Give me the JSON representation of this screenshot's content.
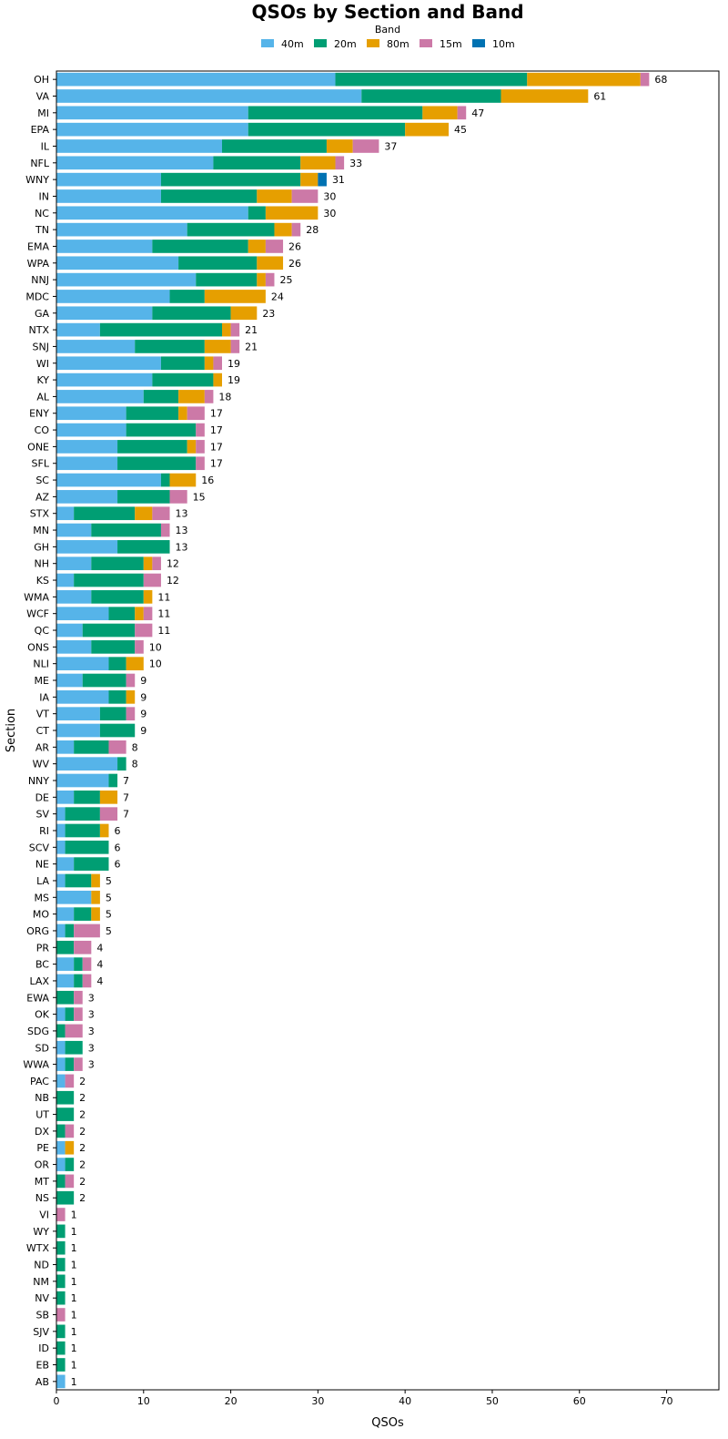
{
  "chart_data": {
    "type": "bar",
    "orientation": "horizontal",
    "stacked": true,
    "title": "QSOs by Section and Band",
    "xlabel": "QSOs",
    "ylabel": "Section",
    "xlim": [
      0,
      76
    ],
    "xticks": [
      0,
      10,
      20,
      30,
      40,
      50,
      60,
      70
    ],
    "grid": false,
    "legend": {
      "title": "Band",
      "position": "top-center"
    },
    "categories": [
      "OH",
      "VA",
      "MI",
      "EPA",
      "IL",
      "NFL",
      "WNY",
      "IN",
      "NC",
      "TN",
      "EMA",
      "WPA",
      "NNJ",
      "MDC",
      "GA",
      "NTX",
      "SNJ",
      "WI",
      "KY",
      "AL",
      "ENY",
      "CO",
      "ONE",
      "SFL",
      "SC",
      "AZ",
      "STX",
      "MN",
      "GH",
      "NH",
      "KS",
      "WMA",
      "WCF",
      "QC",
      "ONS",
      "NLI",
      "ME",
      "IA",
      "VT",
      "CT",
      "AR",
      "WV",
      "NNY",
      "DE",
      "SV",
      "RI",
      "SCV",
      "NE",
      "LA",
      "MS",
      "MO",
      "ORG",
      "PR",
      "BC",
      "LAX",
      "EWA",
      "OK",
      "SDG",
      "SD",
      "WWA",
      "PAC",
      "NB",
      "UT",
      "DX",
      "PE",
      "OR",
      "MT",
      "NS",
      "VI",
      "WY",
      "WTX",
      "ND",
      "NM",
      "NV",
      "SB",
      "SJV",
      "ID",
      "EB",
      "AB"
    ],
    "series": [
      {
        "name": "40m",
        "color": "#56b4e9",
        "values": [
          32,
          35,
          22,
          22,
          19,
          18,
          12,
          12,
          22,
          15,
          11,
          14,
          16,
          13,
          11,
          5,
          9,
          12,
          11,
          10,
          8,
          8,
          7,
          7,
          12,
          7,
          2,
          4,
          7,
          4,
          2,
          4,
          6,
          3,
          4,
          6,
          3,
          6,
          5,
          5,
          2,
          7,
          6,
          2,
          1,
          1,
          1,
          2,
          1,
          4,
          2,
          1,
          0,
          2,
          2,
          0,
          1,
          0,
          1,
          1,
          1,
          0,
          0,
          0,
          1,
          1,
          0,
          0,
          0,
          0,
          0,
          0,
          0,
          0,
          0,
          0,
          0,
          0,
          1
        ]
      },
      {
        "name": "20m",
        "color": "#009e73",
        "values": [
          22,
          16,
          20,
          18,
          12,
          10,
          16,
          11,
          2,
          10,
          11,
          9,
          7,
          4,
          9,
          14,
          8,
          5,
          7,
          4,
          6,
          8,
          8,
          9,
          1,
          6,
          7,
          8,
          6,
          6,
          8,
          6,
          3,
          6,
          5,
          2,
          5,
          2,
          3,
          4,
          4,
          1,
          1,
          3,
          4,
          4,
          5,
          4,
          3,
          0,
          2,
          1,
          2,
          1,
          1,
          2,
          1,
          1,
          2,
          1,
          0,
          2,
          2,
          1,
          0,
          1,
          1,
          2,
          0,
          1,
          1,
          1,
          1,
          1,
          0,
          1,
          1,
          1,
          0
        ]
      },
      {
        "name": "80m",
        "color": "#e69f00",
        "values": [
          13,
          10,
          4,
          5,
          3,
          4,
          2,
          4,
          6,
          2,
          2,
          3,
          1,
          7,
          3,
          1,
          3,
          1,
          1,
          3,
          1,
          0,
          1,
          0,
          3,
          0,
          2,
          0,
          0,
          1,
          0,
          1,
          1,
          0,
          0,
          2,
          0,
          1,
          0,
          0,
          0,
          0,
          0,
          2,
          0,
          1,
          0,
          0,
          1,
          1,
          1,
          0,
          0,
          0,
          0,
          0,
          0,
          0,
          0,
          0,
          0,
          0,
          0,
          0,
          1,
          0,
          0,
          0,
          0,
          0,
          0,
          0,
          0,
          0,
          0,
          0,
          0,
          0,
          0
        ]
      },
      {
        "name": "15m",
        "color": "#cc79a7",
        "values": [
          1,
          0,
          1,
          0,
          3,
          1,
          0,
          3,
          0,
          1,
          2,
          0,
          1,
          0,
          0,
          1,
          1,
          1,
          0,
          1,
          2,
          1,
          1,
          1,
          0,
          2,
          2,
          1,
          0,
          1,
          2,
          0,
          1,
          2,
          1,
          0,
          1,
          0,
          1,
          0,
          2,
          0,
          0,
          0,
          2,
          0,
          0,
          0,
          0,
          0,
          0,
          3,
          2,
          1,
          1,
          1,
          1,
          2,
          0,
          1,
          1,
          0,
          0,
          1,
          0,
          0,
          1,
          0,
          1,
          0,
          0,
          0,
          0,
          0,
          1,
          0,
          0,
          0,
          0
        ]
      },
      {
        "name": "10m",
        "color": "#0072b2",
        "values": [
          0,
          0,
          0,
          0,
          0,
          0,
          1,
          0,
          0,
          0,
          0,
          0,
          0,
          0,
          0,
          0,
          0,
          0,
          0,
          0,
          0,
          0,
          0,
          0,
          0,
          0,
          0,
          0,
          0,
          0,
          0,
          0,
          0,
          0,
          0,
          0,
          0,
          0,
          0,
          0,
          0,
          0,
          0,
          0,
          0,
          0,
          0,
          0,
          0,
          0,
          0,
          0,
          0,
          0,
          0,
          0,
          0,
          0,
          0,
          0,
          0,
          0,
          0,
          0,
          0,
          0,
          0,
          0,
          0,
          0,
          0,
          0,
          0,
          0,
          0,
          0,
          0,
          0,
          0
        ]
      }
    ],
    "totals": [
      68,
      61,
      47,
      45,
      37,
      33,
      31,
      30,
      30,
      28,
      26,
      26,
      25,
      24,
      23,
      21,
      21,
      19,
      19,
      18,
      17,
      17,
      17,
      17,
      16,
      15,
      13,
      13,
      13,
      12,
      12,
      11,
      11,
      11,
      10,
      10,
      9,
      9,
      9,
      9,
      8,
      8,
      7,
      7,
      7,
      6,
      6,
      6,
      5,
      5,
      5,
      5,
      4,
      4,
      4,
      3,
      3,
      3,
      3,
      3,
      2,
      2,
      2,
      2,
      2,
      2,
      2,
      2,
      1,
      1,
      1,
      1,
      1,
      1,
      1,
      1,
      1,
      1,
      1
    ]
  }
}
